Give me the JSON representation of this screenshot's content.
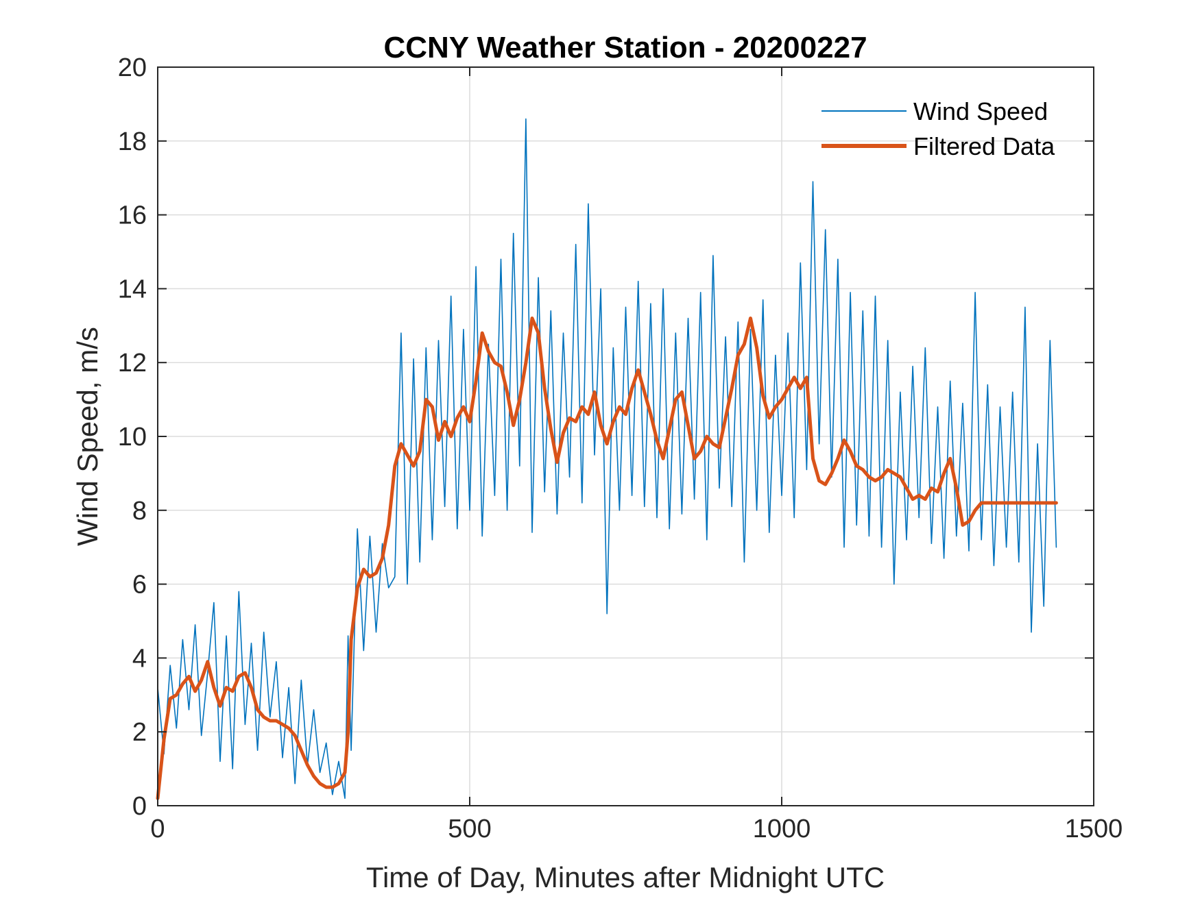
{
  "chart_data": {
    "type": "line",
    "title": "CCNY Weather Station - 20200227",
    "xlabel": "Time of Day, Minutes after Midnight UTC",
    "ylabel": "Wind Speed, m/s",
    "xlim": [
      0,
      1500
    ],
    "ylim": [
      0,
      20
    ],
    "xticks": [
      0,
      500,
      1000,
      1500
    ],
    "xtick_labels": [
      "0",
      "500",
      "1000",
      "1500"
    ],
    "yticks": [
      0,
      2,
      4,
      6,
      8,
      10,
      12,
      14,
      16,
      18,
      20
    ],
    "ytick_labels": [
      "0",
      "2",
      "4",
      "6",
      "8",
      "10",
      "12",
      "14",
      "16",
      "18",
      "20"
    ],
    "grid": true,
    "legend_position": "top-right",
    "series": [
      {
        "name": "Wind Speed",
        "color": "#0072BD",
        "style": "thin-noisy",
        "x": [
          0,
          10,
          20,
          30,
          40,
          50,
          60,
          70,
          80,
          90,
          100,
          110,
          120,
          130,
          140,
          150,
          160,
          170,
          180,
          190,
          200,
          210,
          220,
          230,
          240,
          250,
          260,
          270,
          280,
          290,
          300,
          305,
          310,
          320,
          330,
          340,
          350,
          360,
          370,
          380,
          390,
          400,
          410,
          420,
          430,
          440,
          450,
          460,
          470,
          480,
          490,
          500,
          510,
          520,
          530,
          540,
          550,
          560,
          570,
          580,
          590,
          600,
          610,
          620,
          630,
          640,
          650,
          660,
          670,
          680,
          690,
          700,
          710,
          720,
          730,
          740,
          750,
          760,
          770,
          780,
          790,
          800,
          810,
          820,
          830,
          840,
          850,
          860,
          870,
          880,
          890,
          900,
          910,
          920,
          930,
          940,
          950,
          960,
          970,
          980,
          990,
          1000,
          1010,
          1020,
          1030,
          1040,
          1050,
          1060,
          1070,
          1080,
          1090,
          1100,
          1110,
          1120,
          1130,
          1140,
          1150,
          1160,
          1170,
          1180,
          1190,
          1200,
          1210,
          1220,
          1230,
          1240,
          1250,
          1260,
          1270,
          1280,
          1290,
          1300,
          1310,
          1320,
          1330,
          1340,
          1350,
          1360,
          1370,
          1380,
          1390,
          1400,
          1410,
          1420,
          1430,
          1440
        ],
        "y": [
          3.2,
          1.4,
          3.8,
          2.1,
          4.5,
          2.6,
          4.9,
          1.9,
          3.6,
          5.5,
          1.2,
          4.6,
          1.0,
          5.8,
          2.2,
          4.4,
          1.5,
          4.7,
          2.4,
          3.9,
          1.3,
          3.2,
          0.6,
          3.4,
          1.1,
          2.6,
          0.9,
          1.7,
          0.3,
          1.2,
          0.2,
          4.6,
          1.5,
          7.5,
          4.2,
          7.3,
          4.7,
          7.1,
          5.9,
          6.2,
          12.8,
          6.0,
          12.1,
          6.6,
          12.4,
          7.2,
          12.6,
          8.1,
          13.8,
          7.5,
          12.9,
          8.0,
          14.6,
          7.3,
          12.5,
          8.4,
          14.8,
          8.0,
          15.5,
          9.2,
          18.6,
          7.4,
          14.3,
          8.5,
          13.4,
          7.9,
          12.8,
          8.9,
          15.2,
          8.2,
          16.3,
          9.5,
          14.0,
          5.2,
          12.4,
          8.0,
          13.5,
          8.4,
          14.2,
          8.1,
          13.6,
          7.8,
          14.0,
          7.5,
          12.8,
          7.9,
          13.2,
          8.3,
          13.9,
          7.2,
          14.9,
          8.6,
          12.7,
          8.1,
          13.1,
          6.6,
          12.9,
          8.0,
          13.7,
          7.4,
          12.2,
          8.4,
          12.8,
          7.8,
          14.7,
          9.1,
          16.9,
          9.8,
          15.6,
          8.9,
          14.8,
          7.0,
          13.9,
          7.6,
          13.4,
          7.3,
          13.8,
          7.0,
          12.6,
          6.0,
          11.2,
          7.2,
          11.9,
          7.8,
          12.4,
          7.1,
          10.8,
          6.7,
          11.5,
          7.3,
          10.9,
          6.9,
          13.9,
          7.2,
          11.4,
          6.5,
          10.8,
          7.0,
          11.2,
          6.6,
          13.5,
          4.7,
          9.8,
          5.4,
          12.6,
          7.0
        ]
      },
      {
        "name": "Filtered Data",
        "color": "#D95319",
        "style": "thick-smooth",
        "x": [
          0,
          10,
          20,
          30,
          40,
          50,
          60,
          70,
          80,
          90,
          100,
          110,
          120,
          130,
          140,
          150,
          160,
          170,
          180,
          190,
          200,
          210,
          220,
          230,
          240,
          250,
          260,
          270,
          280,
          290,
          300,
          305,
          310,
          320,
          330,
          340,
          350,
          360,
          370,
          380,
          390,
          400,
          410,
          420,
          430,
          440,
          450,
          460,
          470,
          480,
          490,
          500,
          510,
          520,
          530,
          540,
          550,
          560,
          570,
          580,
          590,
          600,
          610,
          620,
          630,
          640,
          650,
          660,
          670,
          680,
          690,
          700,
          710,
          720,
          730,
          740,
          750,
          760,
          770,
          780,
          790,
          800,
          810,
          820,
          830,
          840,
          850,
          860,
          870,
          880,
          890,
          900,
          910,
          920,
          930,
          940,
          950,
          960,
          970,
          980,
          990,
          1000,
          1010,
          1020,
          1030,
          1040,
          1050,
          1060,
          1070,
          1080,
          1090,
          1100,
          1110,
          1120,
          1130,
          1140,
          1150,
          1160,
          1170,
          1180,
          1190,
          1200,
          1210,
          1220,
          1230,
          1240,
          1250,
          1260,
          1270,
          1280,
          1290,
          1300,
          1310,
          1320,
          1330,
          1340,
          1350,
          1360,
          1370,
          1380,
          1390,
          1400,
          1410,
          1420,
          1430,
          1440
        ],
        "y": [
          0.2,
          1.8,
          2.9,
          3.0,
          3.3,
          3.5,
          3.1,
          3.4,
          3.9,
          3.2,
          2.7,
          3.2,
          3.1,
          3.5,
          3.6,
          3.2,
          2.6,
          2.4,
          2.3,
          2.3,
          2.2,
          2.1,
          1.9,
          1.5,
          1.1,
          0.8,
          0.6,
          0.5,
          0.5,
          0.6,
          0.9,
          2.0,
          4.5,
          5.9,
          6.4,
          6.2,
          6.3,
          6.7,
          7.6,
          9.2,
          9.8,
          9.5,
          9.2,
          9.6,
          11.0,
          10.8,
          9.9,
          10.4,
          10.0,
          10.5,
          10.8,
          10.4,
          11.5,
          12.8,
          12.3,
          12.0,
          11.9,
          11.2,
          10.3,
          11.0,
          12.0,
          13.2,
          12.8,
          11.3,
          10.2,
          9.3,
          10.1,
          10.5,
          10.4,
          10.8,
          10.6,
          11.2,
          10.3,
          9.8,
          10.4,
          10.8,
          10.6,
          11.3,
          11.8,
          11.2,
          10.6,
          9.9,
          9.4,
          10.2,
          11.0,
          11.2,
          10.3,
          9.4,
          9.6,
          10.0,
          9.8,
          9.7,
          10.5,
          11.3,
          12.2,
          12.5,
          13.2,
          12.4,
          11.1,
          10.5,
          10.8,
          11.0,
          11.3,
          11.6,
          11.3,
          11.6,
          9.4,
          8.8,
          8.7,
          9.0,
          9.4,
          9.9,
          9.6,
          9.2,
          9.1,
          8.9,
          8.8,
          8.9,
          9.1,
          9.0,
          8.9,
          8.6,
          8.3,
          8.4,
          8.3,
          8.6,
          8.5,
          9.0,
          9.4,
          8.6,
          7.6,
          7.7,
          8.0,
          8.2,
          8.2,
          8.2,
          8.2,
          8.2,
          8.2,
          8.2,
          8.2,
          8.2,
          8.2,
          8.2,
          8.2,
          8.2
        ]
      }
    ]
  }
}
